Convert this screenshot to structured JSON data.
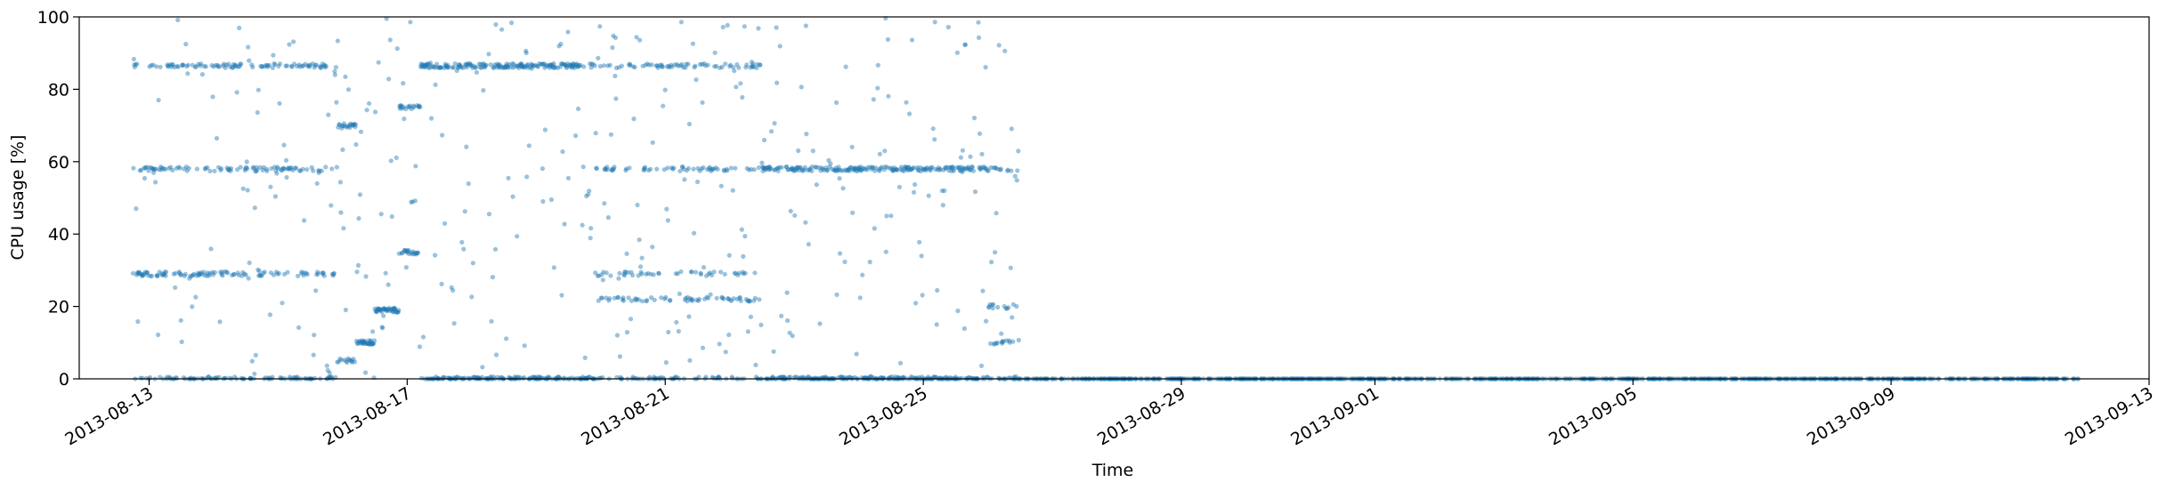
{
  "chart_data": {
    "type": "scatter",
    "title": "",
    "xlabel": "Time",
    "ylabel": "CPU usage [%]",
    "xlim": [
      "2013-08-11T22:00:00",
      "2013-09-13T00:00:00"
    ],
    "ylim": [
      0,
      100
    ],
    "grid": false,
    "legend": "none",
    "y_ticks": [
      0,
      20,
      40,
      60,
      80,
      100
    ],
    "x_ticks": [
      {
        "date": "2013-08-13",
        "label": "2013-08-13"
      },
      {
        "date": "2013-08-17",
        "label": "2013-08-17"
      },
      {
        "date": "2013-08-21",
        "label": "2013-08-21"
      },
      {
        "date": "2013-08-25",
        "label": "2013-08-25"
      },
      {
        "date": "2013-08-29",
        "label": "2013-08-29"
      },
      {
        "date": "2013-09-01",
        "label": "2013-09-01"
      },
      {
        "date": "2013-09-05",
        "label": "2013-09-05"
      },
      {
        "date": "2013-09-09",
        "label": "2013-09-09"
      },
      {
        "date": "2013-09-13",
        "label": "2013-09-13"
      }
    ],
    "marker_color": "#1f77b4",
    "marker_alpha": 0.45,
    "series_segments": [
      {
        "start": "2013-08-12T18:00",
        "end": "2013-08-15T22:00",
        "levels": [
          0,
          29,
          58,
          86.5
        ],
        "noise": true
      },
      {
        "start": "2013-08-15T22:00",
        "end": "2013-08-16T05:00",
        "levels": [
          5,
          70
        ],
        "noise": true
      },
      {
        "start": "2013-08-16T05:00",
        "end": "2013-08-16T12:00",
        "levels": [
          10
        ],
        "noise": true
      },
      {
        "start": "2013-08-16T12:00",
        "end": "2013-08-16T21:00",
        "levels": [
          19
        ],
        "noise": true
      },
      {
        "start": "2013-08-16T21:00",
        "end": "2013-08-17T05:00",
        "levels": [
          35,
          75
        ],
        "noise": true
      },
      {
        "start": "2013-08-17T05:00",
        "end": "2013-08-19T22:00",
        "levels": [
          0,
          86.5
        ],
        "noise": true
      },
      {
        "start": "2013-08-19T22:00",
        "end": "2013-08-22T12:00",
        "levels": [
          0,
          22,
          29,
          58,
          86.5
        ],
        "noise": true
      },
      {
        "start": "2013-08-22T12:00",
        "end": "2013-08-24T22:00",
        "levels": [
          0,
          58
        ],
        "noise": true
      },
      {
        "start": "2013-08-24T22:00",
        "end": "2013-08-26T00:00",
        "levels": [
          0,
          58
        ],
        "noise": true
      },
      {
        "start": "2013-08-26T00:00",
        "end": "2013-08-26T12:00",
        "levels": [
          0,
          10,
          20,
          58
        ],
        "noise": true
      },
      {
        "start": "2013-08-26T12:00",
        "end": "2013-09-11T22:00",
        "levels": [
          0
        ],
        "noise": false
      }
    ]
  }
}
